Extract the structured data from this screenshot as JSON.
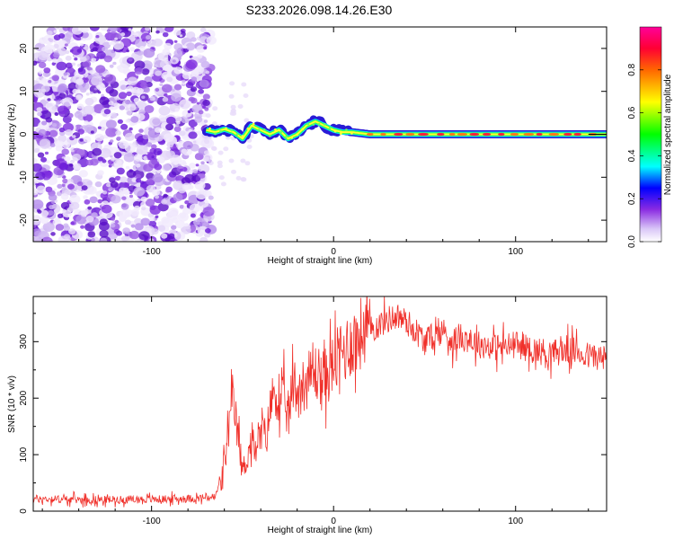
{
  "title": "S233.2026.098.14.26.E30",
  "chart_data": [
    {
      "type": "heatmap",
      "name": "spectrogram",
      "xlabel": "Height of straight line (km)",
      "ylabel": "Frequency (Hz)",
      "xlim": [
        -165,
        150
      ],
      "ylim": [
        -25,
        25
      ],
      "xticks": [
        -100,
        0,
        100
      ],
      "yticks": [
        -20,
        -10,
        0,
        10,
        20
      ],
      "colorbar": {
        "label": "Normalized spectral amplitude",
        "range": [
          0,
          1
        ],
        "ticks": [
          "0.0",
          "0.2",
          "0.4",
          "0.6",
          "0.8"
        ],
        "tick_values": [
          0,
          0.2,
          0.4,
          0.6,
          0.8
        ]
      },
      "noise_region_x": [
        -165,
        -70
      ],
      "signal_track": {
        "x": [
          -70,
          -65,
          -60,
          -55,
          -50,
          -45,
          -40,
          -35,
          -30,
          -25,
          -20,
          -15,
          -10,
          -5,
          0,
          5,
          10,
          20,
          40,
          60,
          80,
          100,
          120,
          140,
          150
        ],
        "y": [
          1,
          0.5,
          1.2,
          0.5,
          -1,
          2,
          1,
          0,
          1,
          -1,
          0,
          2,
          3,
          2,
          1,
          0.5,
          0.5,
          0,
          0,
          0,
          0,
          0,
          0,
          0,
          0
        ]
      }
    },
    {
      "type": "line",
      "name": "snr",
      "xlabel": "Height of straight line (km)",
      "ylabel": "SNR (10 * v/v)",
      "xlim": [
        -165,
        150
      ],
      "ylim": [
        0,
        380
      ],
      "xticks": [
        -100,
        0,
        100
      ],
      "yticks": [
        0,
        100,
        200,
        300
      ],
      "color": "#f0302a",
      "envelope": {
        "x": [
          -165,
          -130,
          -100,
          -80,
          -65,
          -60,
          -57,
          -55,
          -52,
          -50,
          -47,
          -45,
          -42,
          -40,
          -37,
          -35,
          -32,
          -30,
          -27,
          -25,
          -22,
          -20,
          -15,
          -10,
          -5,
          0,
          5,
          10,
          15,
          20,
          25,
          30,
          35,
          40,
          45,
          50,
          55,
          60,
          65,
          70,
          80,
          90,
          100,
          110,
          120,
          130,
          140,
          150
        ],
        "y": [
          22,
          20,
          21,
          22,
          25,
          80,
          160,
          190,
          120,
          70,
          100,
          130,
          95,
          160,
          125,
          180,
          220,
          180,
          200,
          160,
          230,
          210,
          230,
          245,
          235,
          260,
          280,
          300,
          315,
          320,
          330,
          340,
          345,
          335,
          320,
          300,
          310,
          320,
          300,
          310,
          295,
          290,
          295,
          285,
          280,
          285,
          275,
          270
        ]
      }
    }
  ]
}
